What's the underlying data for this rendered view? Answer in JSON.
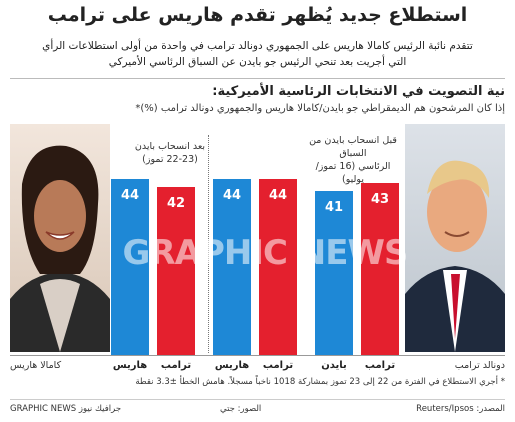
{
  "header": {
    "title": "استطلاع جديد يُظهر تقدم هاريس على ترامب",
    "subtitle_line1": "تتقدم نائبة الرئيس كامالا هاريس على الجمهوري دونالد ترامب في واحدة من أولى استطلاعات الرأي",
    "subtitle_line2": "التي أجريت بعد تنحي الرئيس جو بايدن عن السباق الرئاسي الأميركي"
  },
  "section": {
    "title": "نية التصويت في الانتخابات الرئاسية الأميركية:",
    "question": "إذا كان المرشحون هم الديمقراطي جو بايدن/كامالا هاريس والجمهوري دونالد ترامب (%)*"
  },
  "photos": {
    "left_name": "كامالا هاريس",
    "right_name": "دونالد ترامب"
  },
  "colors": {
    "blue": "#1e88d6",
    "red": "#e4202e"
  },
  "chart_data": {
    "type": "bar",
    "ylim": [
      0,
      100
    ],
    "groups": [
      {
        "label_line1": "قبل انسحاب بايدن من السباق",
        "label_line2": "الرئاسي (16 تموز/يوليو)",
        "bars": [
          {
            "category": "ترامب",
            "value": 43,
            "color": "red"
          },
          {
            "category": "بايدن",
            "value": 41,
            "color": "blue"
          }
        ]
      },
      {
        "label_line1": "",
        "label_line2": "",
        "bars": [
          {
            "category": "ترامب",
            "value": 44,
            "color": "red"
          },
          {
            "category": "هاريس",
            "value": 44,
            "color": "blue"
          }
        ]
      },
      {
        "label_line1": "بعد انسحاب بايدن",
        "label_line2": "(22-23 تموز)",
        "bars": [
          {
            "category": "ترامب",
            "value": 42,
            "color": "red"
          },
          {
            "category": "هاريس",
            "value": 44,
            "color": "blue"
          }
        ]
      }
    ]
  },
  "footnote": "* أجري الاستطلاع في الفترة من 22 إلى 23 تموز بمشاركة 1018 ناخباً مسجلاً. هامش الخطأ ±3.3 نقطة",
  "footer": {
    "source": "المصدر: Reuters/Ipsos",
    "pictures": "الصور: جتي",
    "brand": "GRAPHIC NEWS جرافيك نيوز"
  },
  "watermark": "GRAPHIC NEWS"
}
